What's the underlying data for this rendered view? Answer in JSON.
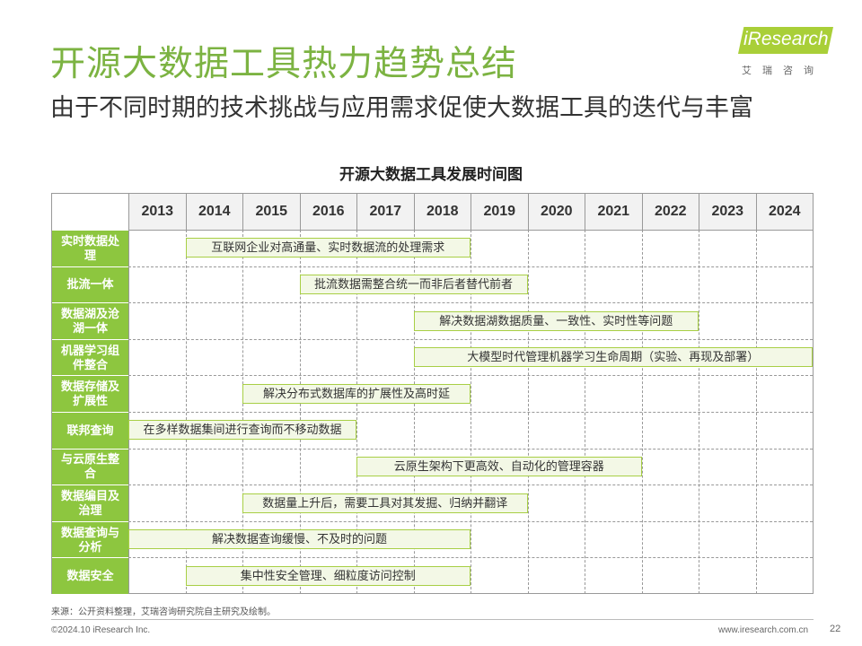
{
  "header": {
    "title": "开源大数据工具热力趋势总结",
    "subtitle": "由于不同时期的技术挑战与应用需求促使大数据工具的迭代与丰富"
  },
  "logo": {
    "text": "iResearch",
    "cn": "艾瑞咨询",
    "color": "#a9cf38"
  },
  "chart_data": {
    "type": "table",
    "title": "开源大数据工具发展时间图",
    "years": [
      "2013",
      "2014",
      "2015",
      "2016",
      "2017",
      "2018",
      "2019",
      "2020",
      "2021",
      "2022",
      "2023",
      "2024"
    ],
    "rows": [
      {
        "label": "实时数据处理",
        "bar": {
          "text": "互联网企业对高通量、实时数据流的处理需求",
          "start": "2014",
          "end": "2018"
        }
      },
      {
        "label": "批流一体",
        "bar": {
          "text": "批流数据需整合统一而非后者替代前者",
          "start": "2016",
          "end": "2019"
        }
      },
      {
        "label": "数据湖及沧湖一体",
        "bar": {
          "text": "解决数据湖数据质量、一致性、实时性等问题",
          "start": "2018",
          "end": "2022"
        }
      },
      {
        "label": "机器学习组件整合",
        "bar": {
          "text": "大模型时代管理机器学习生命周期（实验、再现及部署）",
          "start": "2018",
          "end": "2024"
        }
      },
      {
        "label": "数据存储及扩展性",
        "bar": {
          "text": "解决分布式数据库的扩展性及高时延",
          "start": "2015",
          "end": "2018"
        }
      },
      {
        "label": "联邦查询",
        "bar": {
          "text": "在多样数据集间进行查询而不移动数据",
          "start": "2013",
          "end": "2016"
        }
      },
      {
        "label": "与云原生整合",
        "bar": {
          "text": "云原生架构下更高效、自动化的管理容器",
          "start": "2017",
          "end": "2021"
        }
      },
      {
        "label": "数据编目及治理",
        "bar": {
          "text": "数据量上升后，需要工具对其发掘、归纳并翻译",
          "start": "2015",
          "end": "2019"
        }
      },
      {
        "label": "数据查询与分析",
        "bar": {
          "text": "解决数据查询缓慢、不及时的问题",
          "start": "2013",
          "end": "2018"
        }
      },
      {
        "label": "数据安全",
        "bar": {
          "text": "集中性安全管理、细粒度访问控制",
          "start": "2014",
          "end": "2018"
        }
      }
    ],
    "colors": {
      "label_bg": "#8dc63f",
      "bar_bg": "#f3f8e6",
      "bar_border": "#a8cf45",
      "title": "#7cb342"
    }
  },
  "footer": {
    "source": "来源：公开资料整理，艾瑞咨询研究院自主研究及绘制。",
    "copyright": "©2024.10 iResearch Inc.",
    "site": "www.iresearch.com.cn",
    "page": "22"
  }
}
